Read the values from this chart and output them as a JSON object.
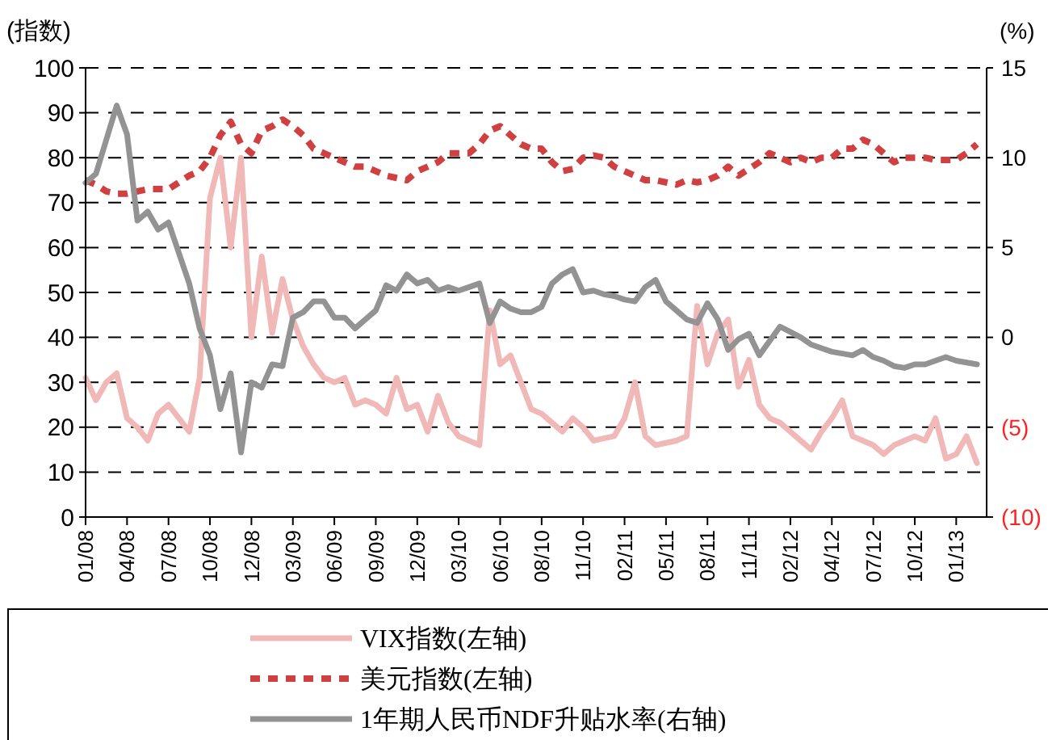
{
  "chart_data": {
    "type": "line",
    "ylabel": "(指数)",
    "y2label": "(%)",
    "categories": [
      "01/08",
      null,
      null,
      null,
      "04/08",
      null,
      null,
      null,
      "07/08",
      null,
      null,
      null,
      "10/08",
      null,
      null,
      null,
      "12/08",
      null,
      null,
      null,
      "03/09",
      null,
      null,
      null,
      "06/09",
      null,
      null,
      null,
      "09/09",
      null,
      null,
      null,
      "12/09",
      null,
      null,
      null,
      "03/10",
      null,
      null,
      null,
      "06/10",
      null,
      null,
      null,
      "08/10",
      null,
      null,
      null,
      "11/10",
      null,
      null,
      null,
      "02/11",
      null,
      null,
      null,
      "05/11",
      null,
      null,
      null,
      "08/11",
      null,
      null,
      null,
      "11/11",
      null,
      null,
      null,
      "02/12",
      null,
      null,
      null,
      "04/12",
      null,
      null,
      null,
      "07/12",
      null,
      null,
      null,
      "10/12",
      null,
      null,
      null,
      "01/13",
      null,
      null
    ],
    "ylim": [
      0,
      100
    ],
    "yticks": [
      0,
      10,
      20,
      30,
      40,
      50,
      60,
      70,
      80,
      90,
      100
    ],
    "y2lim": [
      -10,
      15
    ],
    "y2ticks": [
      {
        "value": -10,
        "label": "(10)"
      },
      {
        "value": -5,
        "label": "(5)"
      },
      0,
      5,
      10,
      15
    ],
    "grid": "y",
    "legend": "bottom",
    "series": [
      {
        "name": "VIX指数(左轴)",
        "color": "#f0b9b8",
        "line_style": "solid",
        "values": [
          31,
          26,
          30,
          32,
          22,
          20,
          17,
          23,
          25,
          22,
          19,
          31,
          71,
          80,
          60,
          80,
          40,
          58,
          41,
          53,
          44,
          38,
          34,
          31,
          30,
          31,
          25,
          26,
          25,
          23,
          31,
          24,
          25,
          19,
          27,
          21,
          18,
          17,
          16,
          46,
          34,
          36,
          30,
          24,
          23,
          21,
          19,
          22,
          20,
          17,
          17.5,
          18,
          22,
          30,
          18,
          16,
          16.5,
          17,
          18,
          47,
          34,
          41,
          44,
          29,
          35,
          25,
          22,
          21,
          19,
          17,
          15,
          19,
          22,
          26,
          18,
          17,
          16,
          14,
          16,
          17,
          18,
          17,
          22,
          13,
          14,
          18,
          12
        ]
      },
      {
        "name": "美元指数(左轴)",
        "color": "#d04040",
        "line_style": "dashed",
        "values": [
          75,
          74,
          72.5,
          72,
          72,
          72.5,
          73,
          73,
          73,
          74.5,
          76,
          77,
          80,
          85,
          88,
          83,
          81,
          86,
          87,
          88.5,
          87,
          85,
          82,
          81,
          80,
          79,
          78,
          78,
          77,
          76,
          75.5,
          75,
          77,
          78,
          79,
          81,
          81,
          81,
          83,
          86,
          87,
          85,
          83,
          82,
          82,
          79,
          77,
          77.5,
          80,
          80.5,
          80,
          78,
          77,
          76,
          75,
          75,
          74.5,
          74,
          75,
          74.5,
          75,
          76,
          78,
          76,
          77.5,
          79,
          81,
          80,
          79,
          80,
          79,
          80,
          80,
          82,
          82,
          84,
          83,
          81,
          79,
          80,
          80,
          80,
          79.5,
          79.5,
          79.5,
          81,
          83
        ]
      },
      {
        "name": "1年期人民币NDF升贴水率(右轴)",
        "color": "#939393",
        "line_style": "solid",
        "axis": "y2",
        "values": [
          8.6,
          9.1,
          11,
          12.9,
          11.3,
          6.5,
          7.0,
          6.0,
          6.4,
          4.7,
          3.0,
          0.5,
          -1.0,
          -4.0,
          -2.0,
          -6.4,
          -2.5,
          -2.8,
          -1.5,
          -1.6,
          1.1,
          1.4,
          2.0,
          2.0,
          1.1,
          1.1,
          0.5,
          1.0,
          1.5,
          2.9,
          2.6,
          3.5,
          3.0,
          3.2,
          2.6,
          2.8,
          2.6,
          2.8,
          3.0,
          0.8,
          2.0,
          1.6,
          1.4,
          1.4,
          1.7,
          3.0,
          3.5,
          3.8,
          2.5,
          2.6,
          2.4,
          2.3,
          2.1,
          2.0,
          2.8,
          3.2,
          2.0,
          1.5,
          1.0,
          0.8,
          1.9,
          1.0,
          -0.7,
          -0.1,
          0.2,
          -1.0,
          -0.2,
          0.6,
          0.3,
          0.0,
          -0.4,
          -0.6,
          -0.8,
          -0.9,
          -1.0,
          -0.7,
          -1.1,
          -1.3,
          -1.6,
          -1.7,
          -1.5,
          -1.5,
          -1.3,
          -1.1,
          -1.3,
          -1.4,
          -1.5
        ]
      }
    ]
  }
}
